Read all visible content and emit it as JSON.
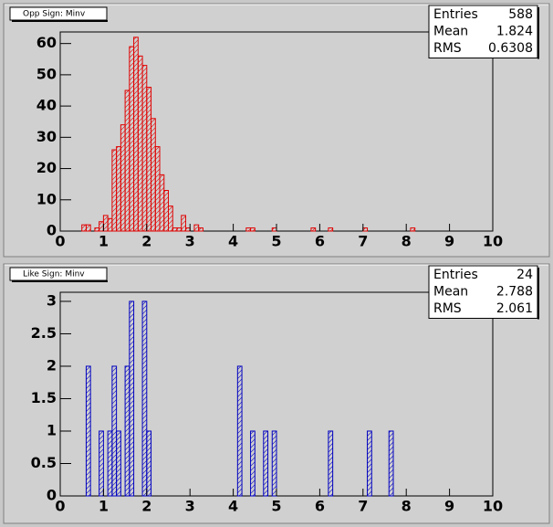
{
  "chart_data": [
    {
      "type": "histogram",
      "title": "Opp Sign: Minv",
      "color": "#e00000",
      "bins": [
        0,
        0.1,
        0.2,
        0.3,
        0.4,
        0.5,
        0.6,
        0.7,
        0.8,
        0.9,
        1,
        1.1,
        1.2,
        1.3,
        1.4,
        1.5,
        1.6,
        1.7,
        1.8,
        1.9,
        2,
        2.1,
        2.2,
        2.3,
        2.4,
        2.5,
        2.6,
        2.7,
        2.8,
        2.9,
        3,
        3.1,
        3.2,
        3.3,
        3.4,
        3.5,
        3.6,
        3.7,
        3.8,
        3.9,
        4,
        4.1,
        4.2,
        4.3,
        4.4,
        4.5,
        4.6,
        4.7,
        4.8,
        4.9,
        5,
        5.1,
        5.2,
        5.3,
        5.4,
        5.5,
        5.6,
        5.7,
        5.8,
        5.9,
        6,
        6.1,
        6.2,
        6.3,
        6.4,
        6.5,
        6.6,
        6.7,
        6.8,
        6.9,
        7,
        7.1,
        7.2,
        7.3,
        7.4,
        7.5,
        7.6,
        7.7,
        7.8,
        7.9,
        8,
        8.1,
        8.2,
        8.3,
        8.4,
        8.5,
        8.6,
        8.7,
        8.8,
        8.9,
        9,
        9.1,
        9.2,
        9.3,
        9.4,
        9.5,
        9.6,
        9.7,
        9.8,
        9.9,
        10
      ],
      "values": [
        0,
        0,
        0,
        0,
        0,
        2,
        2,
        0,
        1,
        3,
        5,
        4,
        26,
        27,
        34,
        45,
        59,
        62,
        56,
        53,
        46,
        36,
        27,
        18,
        13,
        8,
        1,
        1,
        5,
        1,
        0,
        2,
        1,
        0,
        0,
        0,
        0,
        0,
        0,
        0,
        0,
        0,
        0,
        1,
        1,
        0,
        0,
        0,
        0,
        1,
        0,
        0,
        0,
        0,
        0,
        0,
        0,
        0,
        1,
        0,
        0,
        0,
        1,
        0,
        0,
        0,
        0,
        0,
        0,
        0,
        1,
        0,
        0,
        0,
        0,
        0,
        0,
        0,
        0,
        0,
        0,
        1,
        0,
        0,
        0,
        0,
        0,
        0,
        0,
        0,
        0,
        0,
        0,
        0,
        0,
        0,
        0,
        0,
        0,
        0
      ],
      "xlim": [
        0,
        10
      ],
      "xticks": [
        0,
        1,
        2,
        3,
        4,
        5,
        6,
        7,
        8,
        9,
        10
      ],
      "ylim": [
        0,
        63.7
      ],
      "yticks": [
        0,
        10,
        20,
        30,
        40,
        50,
        60
      ],
      "stats": [
        {
          "label": "Entries",
          "value": 588
        },
        {
          "label": "Mean",
          "value": 1.824
        },
        {
          "label": "RMS",
          "value": 0.6308
        }
      ]
    },
    {
      "type": "histogram",
      "title": "Like Sign: Minv",
      "color": "#0000c0",
      "bins": [
        0,
        0.1,
        0.2,
        0.3,
        0.4,
        0.5,
        0.6,
        0.7,
        0.8,
        0.9,
        1,
        1.1,
        1.2,
        1.3,
        1.4,
        1.5,
        1.6,
        1.7,
        1.8,
        1.9,
        2,
        2.1,
        2.2,
        2.3,
        2.4,
        2.5,
        2.6,
        2.7,
        2.8,
        2.9,
        3,
        3.1,
        3.2,
        3.3,
        3.4,
        3.5,
        3.6,
        3.7,
        3.8,
        3.9,
        4,
        4.1,
        4.2,
        4.3,
        4.4,
        4.5,
        4.6,
        4.7,
        4.8,
        4.9,
        5,
        5.1,
        5.2,
        5.3,
        5.4,
        5.5,
        5.6,
        5.7,
        5.8,
        5.9,
        6,
        6.1,
        6.2,
        6.3,
        6.4,
        6.5,
        6.6,
        6.7,
        6.8,
        6.9,
        7,
        7.1,
        7.2,
        7.3,
        7.4,
        7.5,
        7.6,
        7.7,
        7.8,
        7.9,
        8,
        8.1,
        8.2,
        8.3,
        8.4,
        8.5,
        8.6,
        8.7,
        8.8,
        8.9,
        9,
        9.1,
        9.2,
        9.3,
        9.4,
        9.5,
        9.6,
        9.7,
        9.8,
        9.9,
        10
      ],
      "values": [
        0,
        0,
        0,
        0,
        0,
        0,
        2,
        0,
        0,
        1,
        0,
        1,
        2,
        1,
        0,
        2,
        3,
        0,
        0,
        3,
        1,
        0,
        0,
        0,
        0,
        0,
        0,
        0,
        0,
        0,
        0,
        0,
        0,
        0,
        0,
        0,
        0,
        0,
        0,
        0,
        0,
        2,
        0,
        0,
        1,
        0,
        0,
        1,
        0,
        1,
        0,
        0,
        0,
        0,
        0,
        0,
        0,
        0,
        0,
        0,
        0,
        0,
        1,
        0,
        0,
        0,
        0,
        0,
        0,
        0,
        0,
        1,
        0,
        0,
        0,
        0,
        1,
        0,
        0,
        0,
        0,
        0,
        0,
        0,
        0,
        0,
        0,
        0,
        0,
        0,
        0,
        0,
        0,
        0,
        0,
        0,
        0,
        0,
        0,
        0
      ],
      "xlim": [
        0,
        10
      ],
      "xticks": [
        0,
        1,
        2,
        3,
        4,
        5,
        6,
        7,
        8,
        9,
        10
      ],
      "ylim": [
        0,
        3.14
      ],
      "yticks": [
        0,
        0.5,
        1,
        1.5,
        2,
        2.5,
        3
      ],
      "stats": [
        {
          "label": "Entries",
          "value": 24
        },
        {
          "label": "Mean",
          "value": 2.788
        },
        {
          "label": "RMS",
          "value": 2.061
        }
      ]
    }
  ]
}
